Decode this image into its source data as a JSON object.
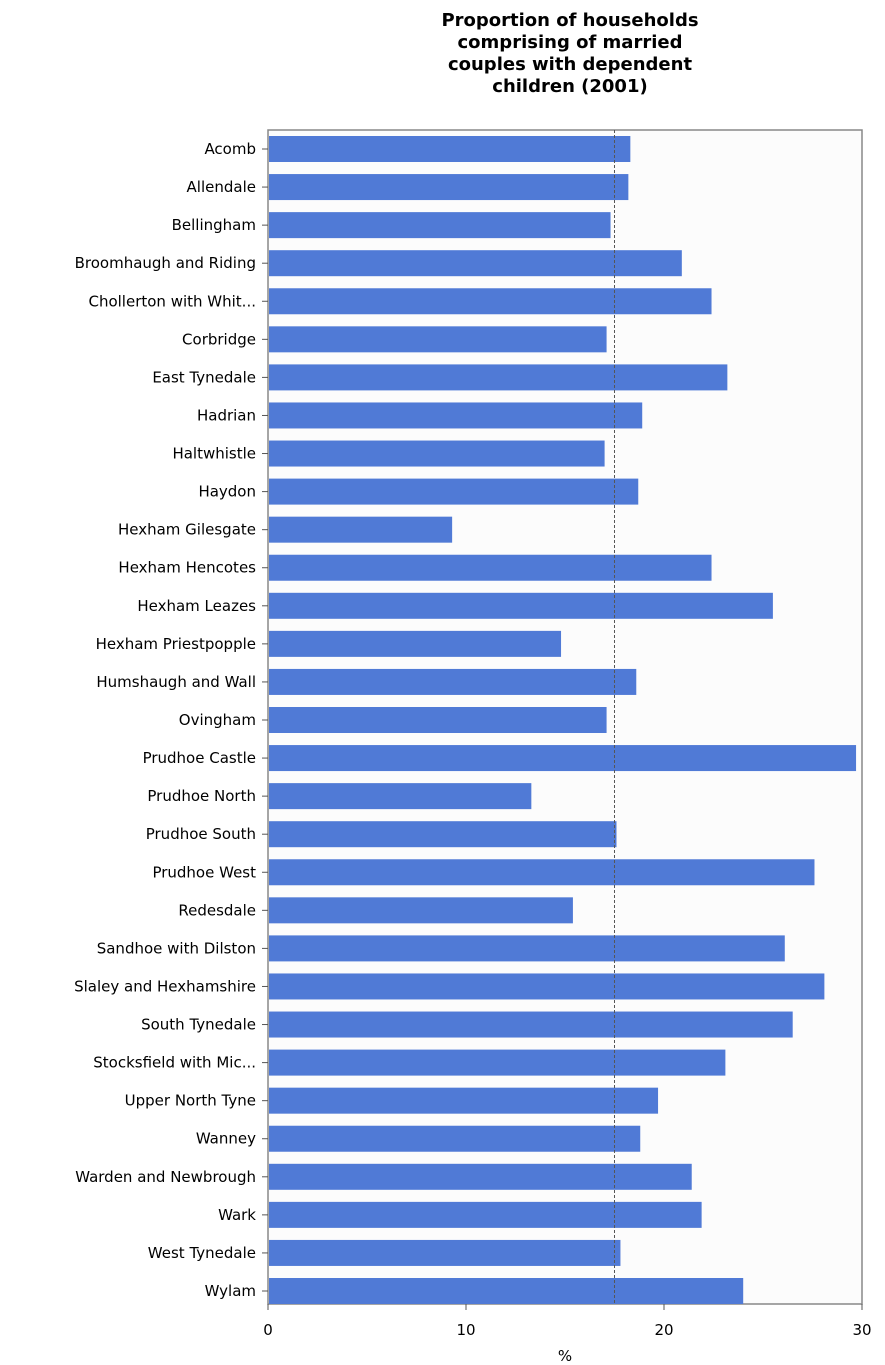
{
  "chart_data": {
    "type": "bar",
    "orientation": "horizontal",
    "title": "Proportion of households\ncomprising of married\ncouples with dependent\nchildren (2001)",
    "xlabel": "%",
    "ylabel": "",
    "xlim": [
      0,
      30
    ],
    "xticks": [
      0,
      10,
      20,
      30
    ],
    "reference_line": 17.5,
    "bar_color": "#507ad6",
    "categories": [
      "Acomb",
      "Allendale",
      "Bellingham",
      "Broomhaugh and Riding",
      "Chollerton with Whit...",
      "Corbridge",
      "East Tynedale",
      "Hadrian",
      "Haltwhistle",
      "Haydon",
      "Hexham Gilesgate",
      "Hexham Hencotes",
      "Hexham Leazes",
      "Hexham Priestpopple",
      "Humshaugh and Wall",
      "Ovingham",
      "Prudhoe Castle",
      "Prudhoe North",
      "Prudhoe South",
      "Prudhoe West",
      "Redesdale",
      "Sandhoe with Dilston",
      "Slaley and Hexhamshire",
      "South Tynedale",
      "Stocksfield with Mic...",
      "Upper North Tyne",
      "Wanney",
      "Warden and Newbrough",
      "Wark",
      "West Tynedale",
      "Wylam"
    ],
    "values": [
      18.3,
      18.2,
      17.3,
      20.9,
      22.4,
      17.1,
      23.2,
      18.9,
      17.0,
      18.7,
      9.3,
      22.4,
      25.5,
      14.8,
      18.6,
      17.1,
      29.7,
      13.3,
      17.6,
      27.6,
      15.4,
      26.1,
      28.1,
      26.5,
      23.1,
      19.7,
      18.8,
      21.4,
      21.9,
      17.8,
      24.0
    ]
  }
}
